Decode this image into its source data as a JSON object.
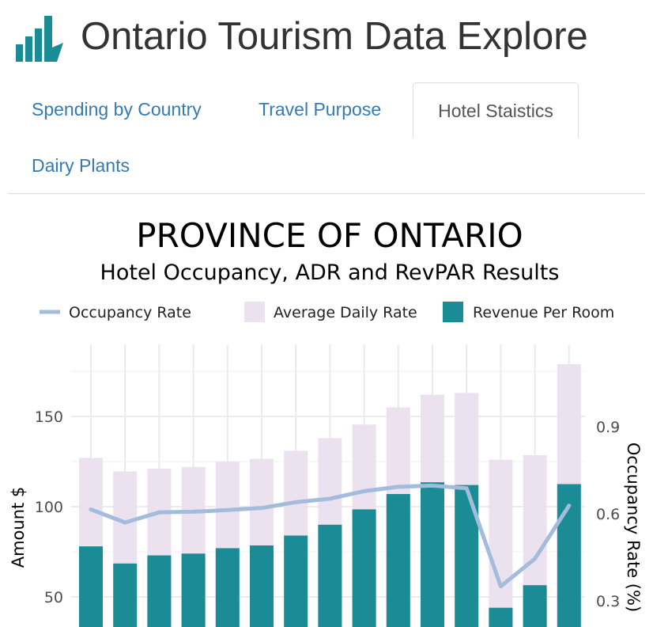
{
  "header": {
    "title": "Ontario Tourism Data Explore",
    "logo_icon": "bar-chart-logo-icon"
  },
  "tabs": [
    {
      "label": "Spending by Country",
      "active": false
    },
    {
      "label": "Travel Purpose",
      "active": false
    },
    {
      "label": "Hotel Staistics",
      "active": true
    },
    {
      "label": "Dairy Plants",
      "active": false
    }
  ],
  "colors": {
    "adr": "#ece1ef",
    "revpar": "#1b8c95",
    "occupancy": "#a3bcdb",
    "link": "#337ab7"
  },
  "chart_data": {
    "type": "bar",
    "title": "PROVINCE OF ONTARIO",
    "subtitle": "Hotel Occupancy, ADR and RevPAR Results",
    "ylabel": "Amount $",
    "y2label": "Occupancy Rate (%)",
    "legend_position": "top",
    "grid": true,
    "ylim_visible": [
      37,
      179
    ],
    "y_ticks": [
      50,
      100,
      150
    ],
    "y2_ticks": [
      0.3,
      0.6,
      0.9
    ],
    "y2_ticks_labels": [
      "0.3",
      "0.6",
      "0.9"
    ],
    "y_ticks_labels": [
      "50",
      "100",
      "150"
    ],
    "series": [
      {
        "name": "Average Daily Rate",
        "type": "bar",
        "values": [
          127,
          119.5,
          121,
          122,
          125,
          126.5,
          131,
          138,
          145.5,
          155,
          162,
          163,
          126,
          128.5,
          179
        ]
      },
      {
        "name": "Revenue Per Room",
        "type": "bar",
        "values": [
          78,
          68.5,
          73,
          74,
          77,
          78.5,
          84,
          90,
          98.5,
          107,
          113.5,
          112,
          44,
          56.5,
          112.5
        ]
      },
      {
        "name": "Occupancy Rate",
        "type": "line",
        "axis": "secondary",
        "values": [
          0.615,
          0.57,
          0.605,
          0.607,
          0.613,
          0.62,
          0.64,
          0.652,
          0.678,
          0.693,
          0.697,
          0.688,
          0.35,
          0.445,
          0.628
        ]
      }
    ]
  }
}
